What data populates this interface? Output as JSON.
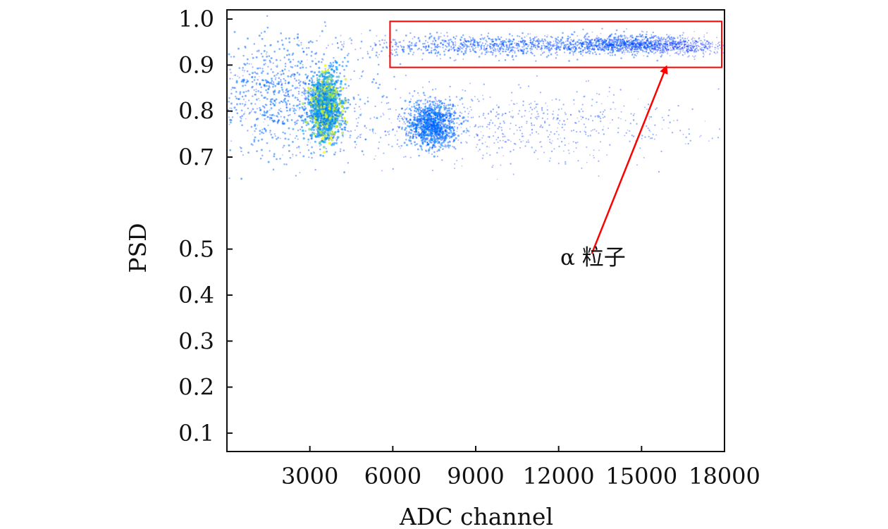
{
  "chart_data": {
    "type": "scatter",
    "title": "",
    "xlabel": "ADC channel",
    "ylabel": "PSD",
    "xlim": [
      0,
      18000
    ],
    "ylim": [
      0.06,
      1.02
    ],
    "xticks": [
      3000,
      6000,
      9000,
      12000,
      15000,
      18000
    ],
    "yticks": [
      0.1,
      0.2,
      0.3,
      0.4,
      0.5,
      0.7,
      0.8,
      0.9,
      1.0
    ],
    "grid": false,
    "colors": {
      "low_density": "#0000ff",
      "mid_density": "#00a6ff",
      "high_density": "#f6ff00",
      "highlight_box": "#ff0000",
      "annotation_arrow": "#ff0000"
    },
    "density_regions": [
      {
        "x_center": 2100,
        "y_center": 0.83,
        "x_spread": 1500,
        "y_spread": 0.065,
        "relative_density": 0.62
      },
      {
        "x_center": 3550,
        "y_center": 0.81,
        "x_spread": 280,
        "y_spread": 0.035,
        "relative_density": 1.0
      },
      {
        "x_center": 7400,
        "y_center": 0.77,
        "x_spread": 450,
        "y_spread": 0.025,
        "relative_density": 0.68
      },
      {
        "x_center": 9700,
        "y_center": 0.942,
        "x_spread": 2600,
        "y_spread": 0.012,
        "relative_density": 0.52
      },
      {
        "x_center": 14300,
        "y_center": 0.945,
        "x_spread": 1200,
        "y_spread": 0.01,
        "relative_density": 0.5
      },
      {
        "x_center": 16400,
        "y_center": 0.94,
        "x_spread": 900,
        "y_spread": 0.009,
        "relative_density": 0.24
      },
      {
        "x_center": 10000,
        "y_center": 0.77,
        "x_spread": 3500,
        "y_spread": 0.04,
        "relative_density": 0.38
      }
    ],
    "annotations": [
      {
        "text": "α 粒子",
        "box_x": [
          5900,
          17900
        ],
        "box_y": [
          0.895,
          0.995
        ],
        "arrow_from": {
          "x": 13200,
          "y": 0.49
        },
        "arrow_to": {
          "x": 15900,
          "y": 0.897
        }
      }
    ]
  }
}
